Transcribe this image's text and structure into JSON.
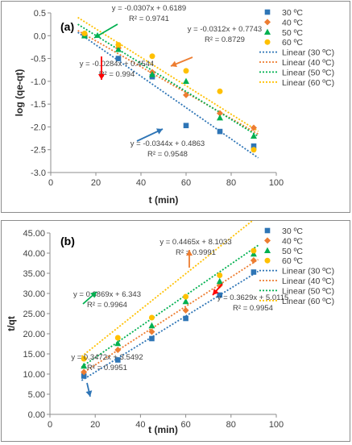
{
  "chart_data": [
    {
      "type": "scatter",
      "panel_label": "(a)",
      "xlabel": "t (min)",
      "ylabel": "log (qe-qt)",
      "xlim": [
        0,
        100
      ],
      "ylim": [
        -3.0,
        0.5
      ],
      "xticks": [
        "0",
        "20",
        "40",
        "60",
        "80",
        "100"
      ],
      "yticks": [
        "0.5",
        "0.0",
        "-0.5",
        "-1.0",
        "-1.5",
        "-2.0",
        "-2.5",
        "-3.0"
      ],
      "grid": false,
      "legend_position": "right",
      "series": [
        {
          "name": "30 ºC",
          "marker": "square",
          "color": "#2e75b6",
          "x": [
            15,
            30,
            45,
            60,
            75,
            90
          ],
          "y": [
            0.0,
            -0.5,
            -0.9,
            -1.97,
            -2.1,
            -2.42
          ],
          "fit": {
            "slope": -0.0344,
            "intercept": 0.4863
          }
        },
        {
          "name": "40 ºC",
          "marker": "diamond",
          "color": "#ed7d31",
          "x": [
            15,
            30,
            45,
            60,
            75,
            90
          ],
          "y": [
            0.03,
            -0.27,
            -0.8,
            -1.3,
            -1.7,
            -2.02
          ],
          "fit": {
            "slope": -0.0284,
            "intercept": 0.4544
          }
        },
        {
          "name": "50 ºC",
          "marker": "triangle",
          "color": "#00b050",
          "x": [
            15,
            30,
            45,
            60,
            75,
            90
          ],
          "y": [
            0.0,
            -0.3,
            -0.85,
            -1.0,
            -1.8,
            -2.2
          ],
          "fit": {
            "slope": -0.0307,
            "intercept": 0.6189
          }
        },
        {
          "name": "60 ºC",
          "marker": "circle",
          "color": "#ffc000",
          "x": [
            15,
            30,
            45,
            60,
            75,
            90
          ],
          "y": [
            0.05,
            -0.2,
            -0.45,
            -0.77,
            -1.22,
            -2.5
          ],
          "fit": {
            "slope": -0.0312,
            "intercept": 0.7743
          }
        }
      ],
      "linear_legend": [
        "Linear (30 ºC)",
        "Linear (40 ºC)",
        "Linear (50 ºC)",
        "Linear (60 ºC)"
      ],
      "annotations": [
        {
          "eq": "y = -0.0307x + 0.6189",
          "r2": "R² = 0.9741",
          "color": "#00b050"
        },
        {
          "eq": "y = -0.0312x + 0.7743",
          "r2": "R² = 0.8729",
          "color": "#ed7d31"
        },
        {
          "eq": "y = -0.0284x + 0.4544",
          "r2": "R² = 0.994",
          "color": "#ff0000"
        },
        {
          "eq": "y = -0.0344x + 0.4863",
          "r2": "R² = 0.9548",
          "color": "#2e75b6"
        }
      ]
    },
    {
      "type": "scatter",
      "panel_label": "(b)",
      "xlabel": "t (min)",
      "ylabel": "t/qt",
      "xlim": [
        0,
        100
      ],
      "ylim": [
        0,
        45
      ],
      "xticks": [
        "0",
        "20",
        "40",
        "60",
        "80",
        "100"
      ],
      "yticks": [
        "45.00",
        "40.00",
        "35.00",
        "30.00",
        "25.00",
        "20.00",
        "15.00",
        "10.00",
        "5.00",
        "0.00"
      ],
      "grid": false,
      "legend_position": "right",
      "series": [
        {
          "name": "30 ºC",
          "marker": "square",
          "color": "#2e75b6",
          "x": [
            15,
            30,
            45,
            60,
            75,
            90
          ],
          "y": [
            9.5,
            13.5,
            18.8,
            23.8,
            29.6,
            35.3
          ],
          "fit": {
            "slope": 0.3472,
            "intercept": 3.5492
          }
        },
        {
          "name": "40 ºC",
          "marker": "diamond",
          "color": "#ed7d31",
          "x": [
            15,
            30,
            45,
            60,
            75,
            90
          ],
          "y": [
            10.5,
            16.0,
            20.5,
            25.8,
            32.0,
            38.2
          ],
          "fit": {
            "slope": 0.3629,
            "intercept": 5.0115
          }
        },
        {
          "name": "50 ºC",
          "marker": "triangle",
          "color": "#00b050",
          "x": [
            15,
            30,
            45,
            60,
            75,
            90
          ],
          "y": [
            12.0,
            17.6,
            22.0,
            28.0,
            33.0,
            39.8
          ],
          "fit": {
            "slope": 0.3869,
            "intercept": 6.343
          }
        },
        {
          "name": "60 ºC",
          "marker": "circle",
          "color": "#ffc000",
          "x": [
            15,
            30,
            45,
            60,
            75,
            90
          ],
          "y": [
            13.8,
            19.0,
            24.0,
            29.2,
            34.5,
            40.6
          ],
          "fit": {
            "slope": 0.4465,
            "intercept": 8.1033
          }
        }
      ],
      "linear_legend": [
        "Linear (30 ºC)",
        "Linear (40 ºC)",
        "Linear (50 ºC)",
        "Linear (60 ºC)"
      ],
      "annotations": [
        {
          "eq": "y = 0.4465x + 8.1033",
          "r2": "R² = 0.9991",
          "color": "#ed7d31"
        },
        {
          "eq": "y = 0.3869x + 6.343",
          "r2": "R² = 0.9964",
          "color": "#00b050"
        },
        {
          "eq": "y = 0.3629x + 5.0115",
          "r2": "R² = 0.9954",
          "color": "#ff0000"
        },
        {
          "eq": "y = 0.3472x + 3.5492",
          "r2": "R² = 0.9951",
          "color": "#2e75b6"
        }
      ]
    }
  ]
}
